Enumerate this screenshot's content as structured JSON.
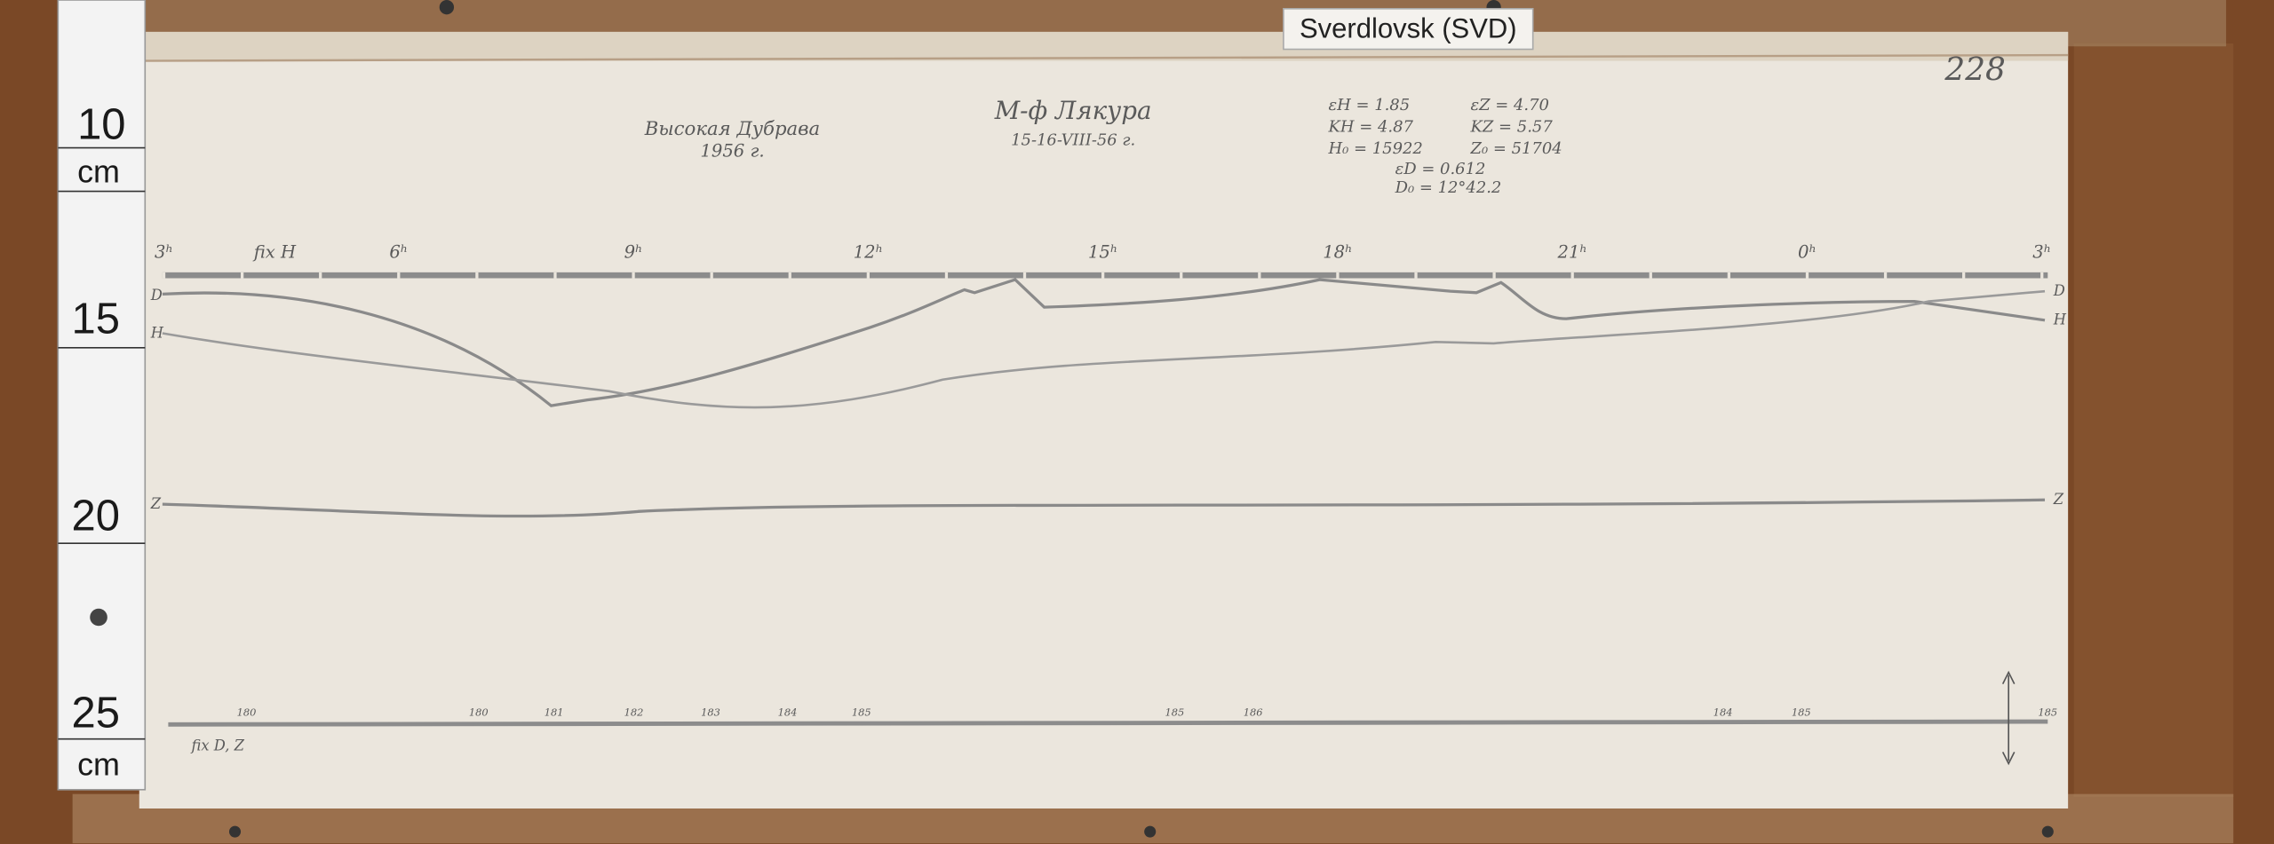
{
  "label_tag": "Sverdlovsk (SVD)",
  "sheet_number": "228",
  "station": {
    "name": "Высокая Дубрава",
    "year": "1956 г."
  },
  "event": {
    "title": "М-ф Лякура",
    "date": "15-16-VIII-56 г."
  },
  "parameters": [
    "εH = 1.85",
    "εZ = 4.70",
    "KH = 4.87",
    "KZ = 5.57",
    "H₀ = 15922",
    "Z₀ = 51704",
    "εD = 0.612",
    "D₀ = 12°42.2"
  ],
  "time_axis": [
    "3ʰ",
    "6ʰ",
    "9ʰ",
    "12ʰ",
    "15ʰ",
    "18ʰ",
    "21ʰ",
    "0ʰ",
    "3ʰ"
  ],
  "fix_labels": {
    "top": "fix H",
    "bottom": "fix D, Z"
  },
  "trace_labels": {
    "left": [
      "D",
      "H",
      "Z"
    ],
    "right": [
      "D",
      "H",
      "Z"
    ]
  },
  "ruler": {
    "labels": [
      "10",
      "cm",
      "15",
      "20",
      "25",
      "cm"
    ]
  },
  "baseline_numbers": [
    "180",
    "180",
    "181",
    "182",
    "183",
    "184",
    "185",
    "185",
    "186",
    "184",
    "185",
    "185"
  ]
}
